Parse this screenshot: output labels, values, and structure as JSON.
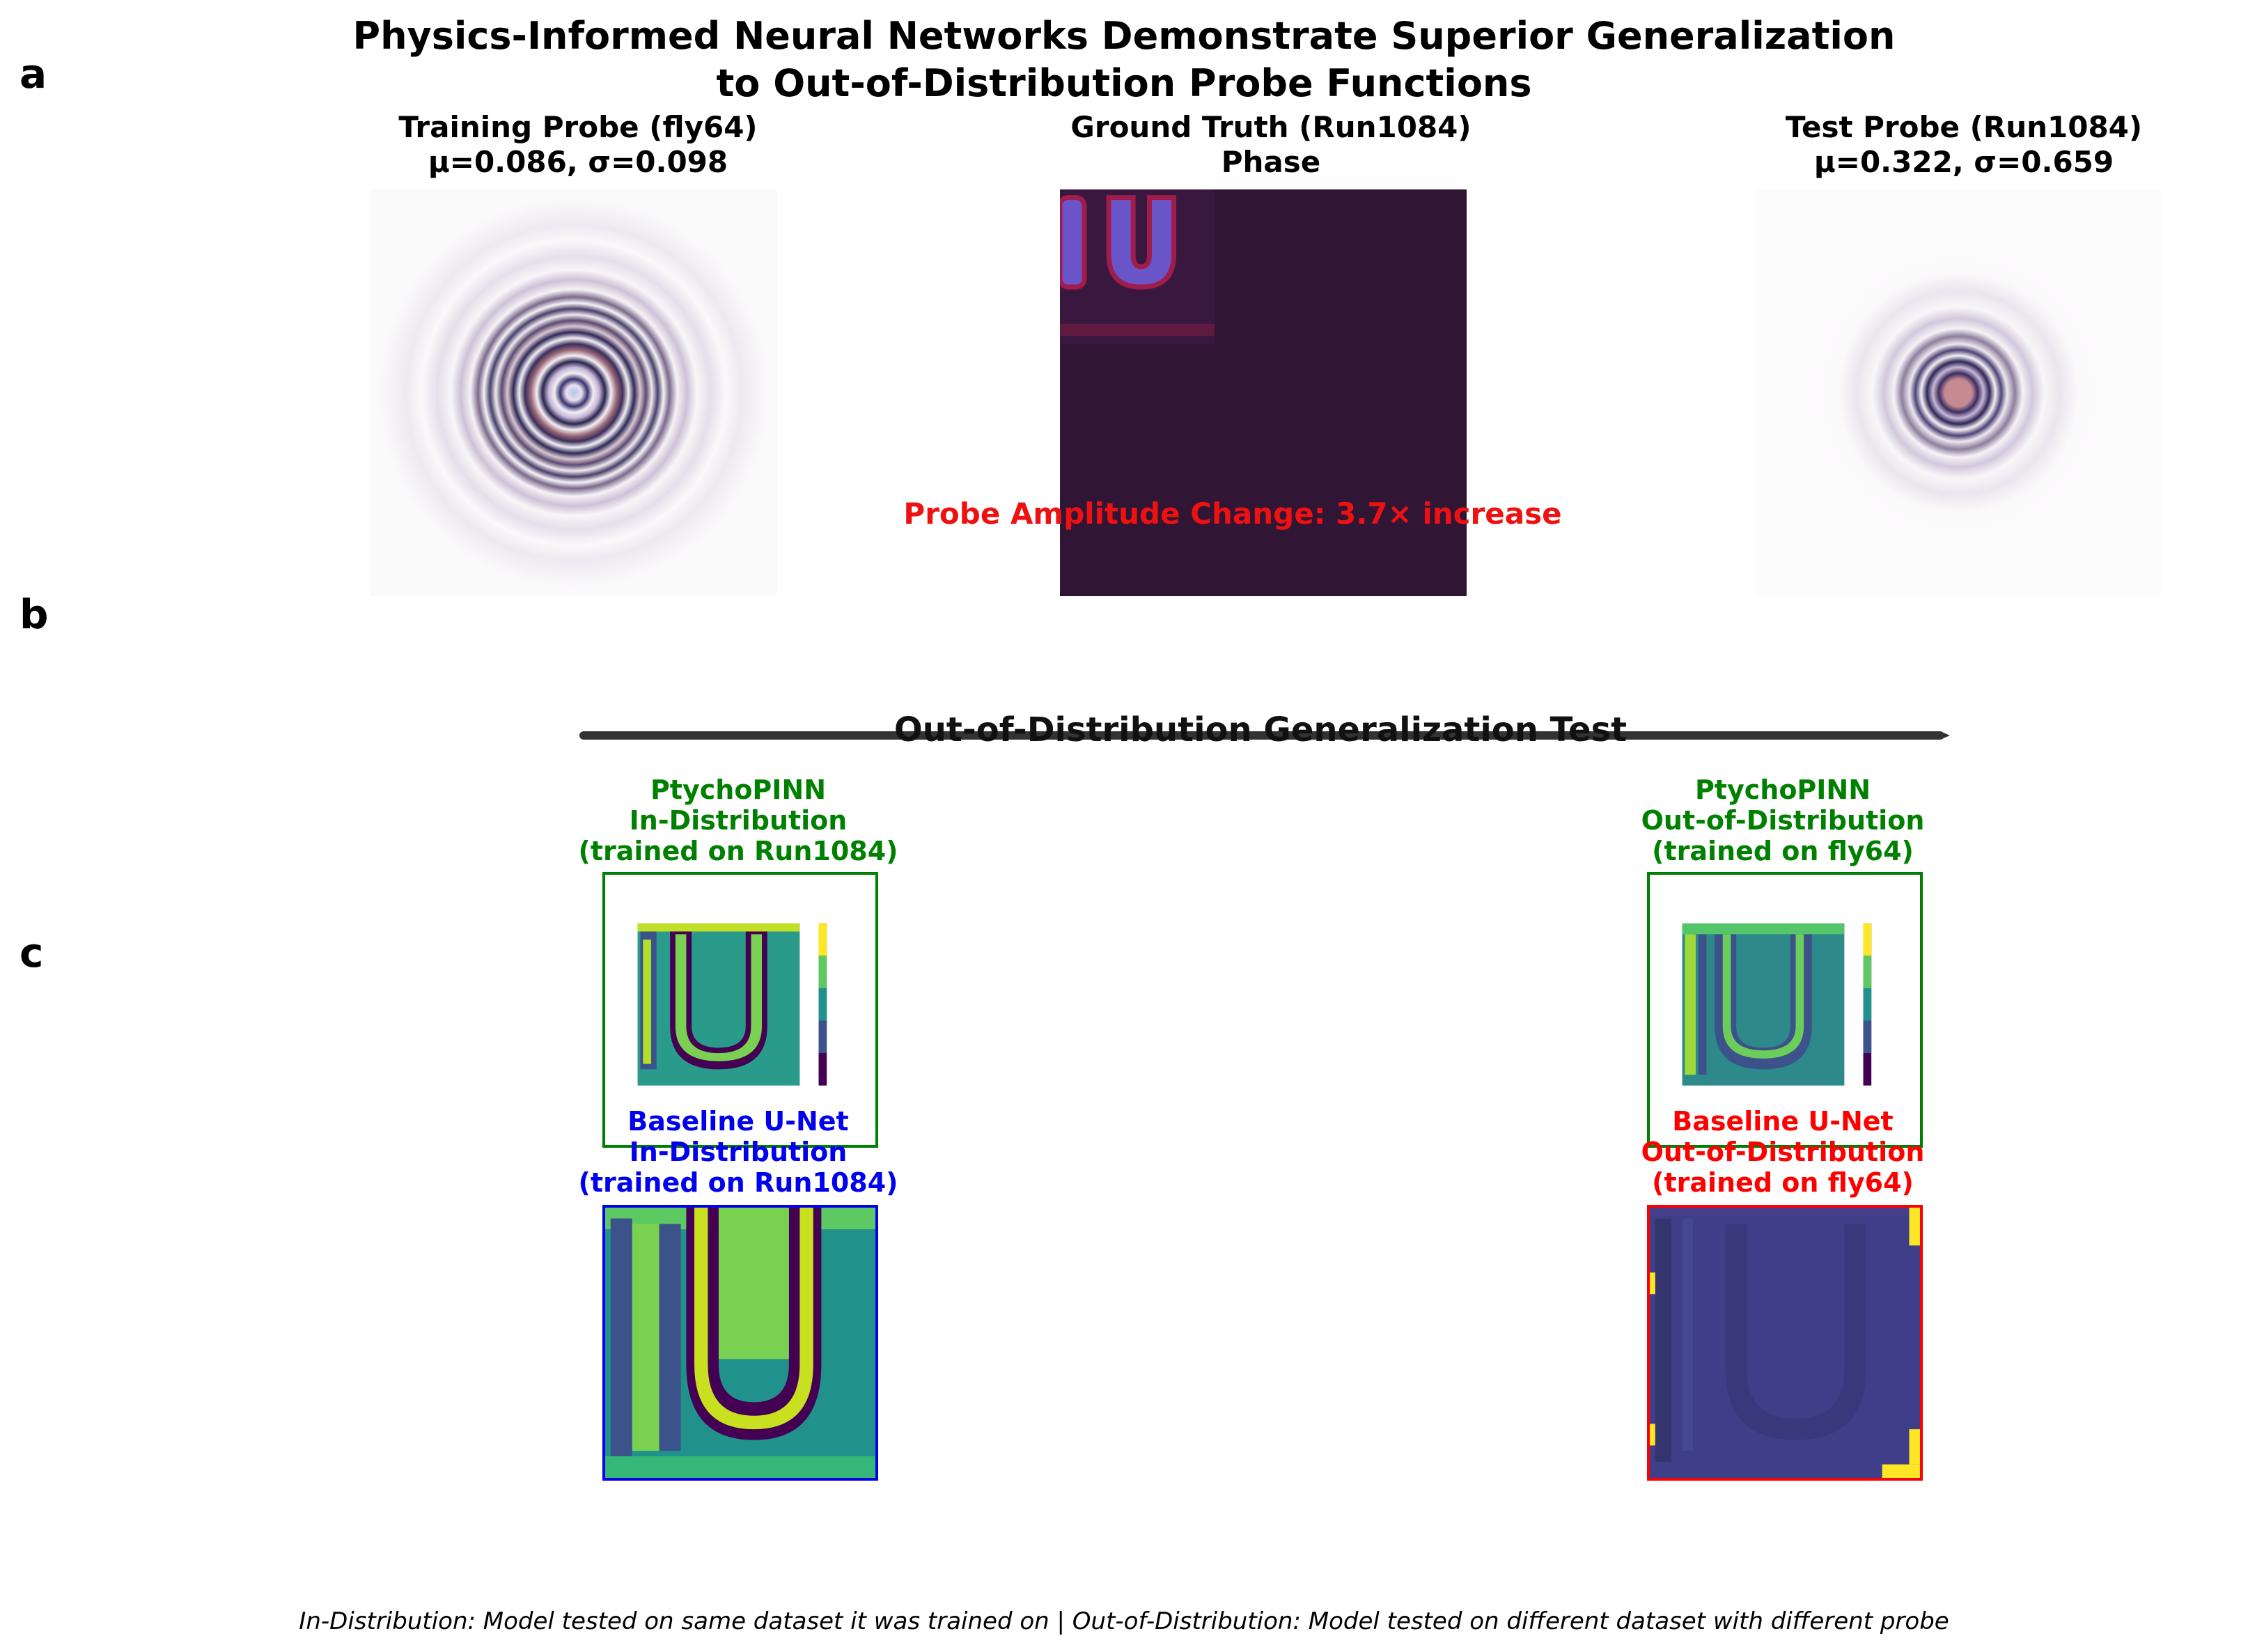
{
  "title": {
    "line1": "Physics-Informed Neural Networks Demonstrate Superior Generalization",
    "line2": "to Out-of-Distribution Probe Functions"
  },
  "panel_labels": {
    "a": "a",
    "b": "b",
    "c": "c"
  },
  "panel_a": {
    "training_probe": {
      "line1": "Training Probe (fly64)",
      "line2": "μ=0.086, σ=0.098"
    },
    "ground_truth": {
      "line1": "Ground Truth (Run1084)",
      "line2": "Phase"
    },
    "test_probe": {
      "line1": "Test Probe (Run1084)",
      "line2": "μ=0.322, σ=0.659"
    },
    "amplitude_change": "Probe Amplitude Change: 3.7× increase"
  },
  "panel_b": {
    "header": "Out-of-Distribution Generalization Test",
    "ptycho_in": {
      "line1": "PtychoPINN",
      "line2": "In-Distribution",
      "line3": "(trained on Run1084)"
    },
    "ptycho_out": {
      "line1": "PtychoPINN",
      "line2": "Out-of-Distribution",
      "line3": "(trained on fly64)"
    },
    "unet_in": {
      "line1": "Baseline U-Net",
      "line2": "In-Distribution",
      "line3": "(trained on Run1084)"
    },
    "unet_out": {
      "line1": "Baseline U-Net",
      "line2": "Out-of-Distribution",
      "line3": "(trained on fly64)"
    }
  },
  "colors": {
    "ptychopinn": "#008000",
    "unet_in": "#0000ee",
    "unet_out": "#ff0000",
    "amplitude_text": "#ee1111",
    "arrow": "#333333"
  },
  "footer": "In-Distribution: Model tested on same dataset it was trained on | Out-of-Distribution: Model tested on different dataset with different probe"
}
